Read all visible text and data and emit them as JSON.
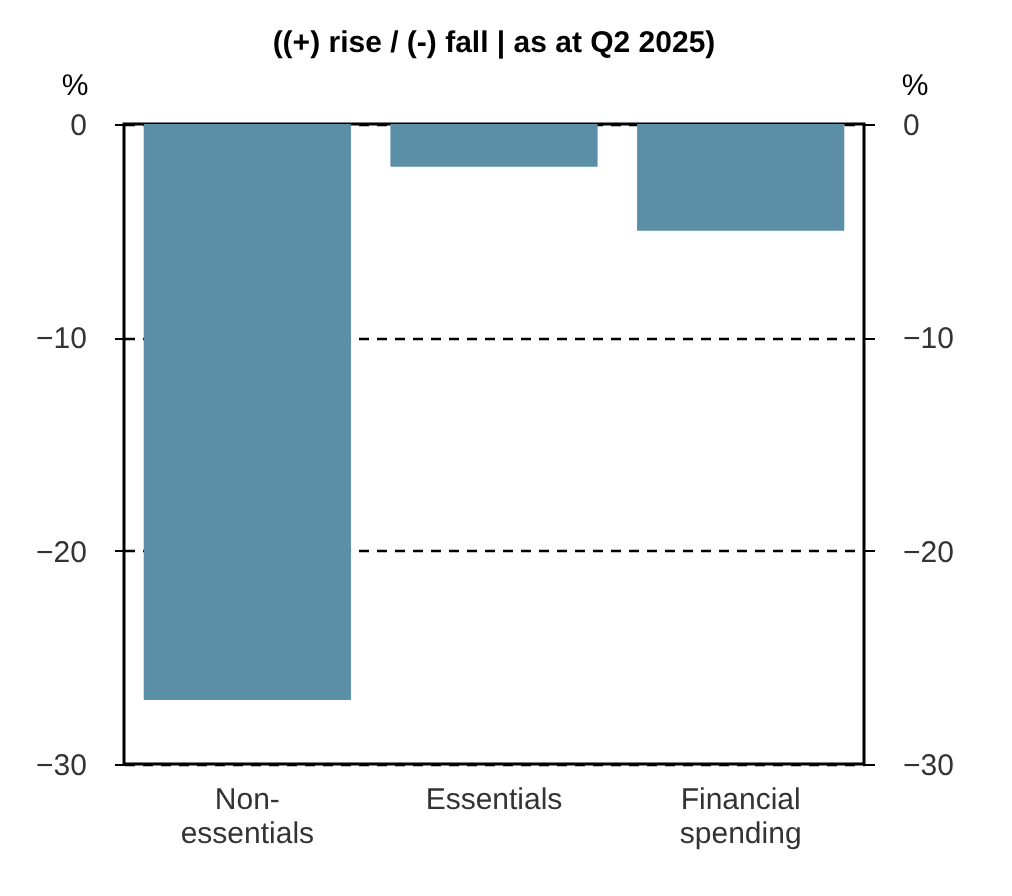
{
  "chart_data": {
    "type": "bar",
    "title": "((+) rise / (-) fall | as at Q2 2025)",
    "categories": [
      "Non-essentials",
      "Essentials",
      "Financial spending"
    ],
    "values": [
      -27,
      -2,
      -5
    ],
    "color": "#5b8fa8",
    "ylabel": "%",
    "y2label": "%",
    "ylim": [
      -30,
      0
    ],
    "yticks": [
      -30,
      -20,
      -10,
      0
    ],
    "y2lim": [
      -30,
      0
    ],
    "y2ticks": [
      -30,
      -20,
      -10,
      0
    ],
    "grid": "y",
    "line_style": "dashed"
  }
}
